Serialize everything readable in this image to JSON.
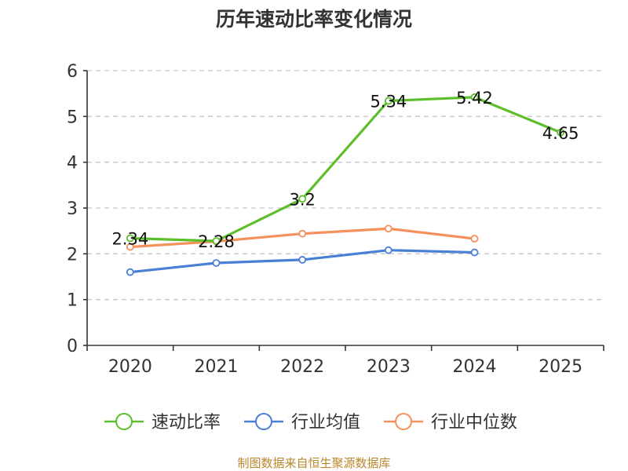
{
  "chart_data": {
    "type": "line",
    "title": "历年速动比率变化情况",
    "categories": [
      "2020",
      "2021",
      "2022",
      "2023",
      "2024",
      "2025"
    ],
    "ylim": [
      0,
      6
    ],
    "yticks": [
      "0",
      "1",
      "2",
      "3",
      "4",
      "5",
      "6"
    ],
    "grid": true,
    "legend_position": "bottom",
    "series": [
      {
        "name": "速动比率",
        "color": "#5cbf2a",
        "values": [
          2.34,
          2.28,
          3.2,
          5.34,
          5.42,
          4.65
        ],
        "labels": [
          "2.34",
          "2.28",
          "3.2",
          "5.34",
          "5.42",
          "4.65"
        ]
      },
      {
        "name": "行业均值",
        "color": "#4a7fd6",
        "values": [
          1.6,
          1.8,
          1.87,
          2.08,
          2.03,
          null
        ]
      },
      {
        "name": "行业中位数",
        "color": "#f5905a",
        "values": [
          2.15,
          2.27,
          2.44,
          2.55,
          2.33,
          null
        ]
      }
    ]
  },
  "source": "制图数据来自恒生聚源数据库"
}
